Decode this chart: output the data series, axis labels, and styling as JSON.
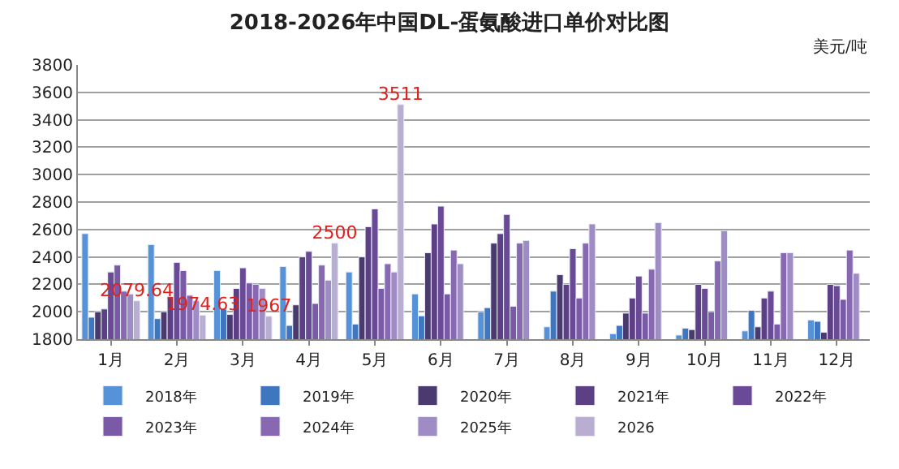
{
  "chart_data": {
    "type": "bar",
    "title": "2018-2026年中国DL-蛋氨酸进口单价对比图",
    "ylabel": "美元/吨",
    "categories": [
      "1月",
      "2月",
      "3月",
      "4月",
      "5月",
      "6月",
      "7月",
      "8月",
      "9月",
      "10月",
      "11月",
      "12月"
    ],
    "ylim": [
      1800,
      3800
    ],
    "yticks": [
      1800,
      2000,
      2200,
      2400,
      2600,
      2800,
      3000,
      3200,
      3400,
      3600,
      3800
    ],
    "grid": "y",
    "legend": "bottom",
    "series": [
      {
        "name": "2018年",
        "color": "#5592d8",
        "values": [
          2570,
          2490,
          2300,
          2330,
          2290,
          2130,
          2000,
          1890,
          1840,
          1830,
          1860,
          1940
        ]
      },
      {
        "name": "2019年",
        "color": "#3f76c0",
        "values": [
          1960,
          1950,
          2020,
          1900,
          1910,
          1970,
          2030,
          2150,
          1900,
          1880,
          2010,
          1930
        ]
      },
      {
        "name": "2020年",
        "color": "#4a3a6e",
        "values": [
          2000,
          2000,
          1980,
          2050,
          2400,
          2430,
          2500,
          2270,
          1990,
          1870,
          1890,
          1850
        ]
      },
      {
        "name": "2021年",
        "color": "#5c3f85",
        "values": [
          2020,
          2110,
          2170,
          2400,
          2620,
          2640,
          2570,
          2200,
          2100,
          2200,
          2100,
          2200
        ]
      },
      {
        "name": "2022年",
        "color": "#6a4a96",
        "values": [
          2290,
          2360,
          2320,
          2440,
          2750,
          2770,
          2710,
          2460,
          2260,
          2170,
          2150,
          2190
        ]
      },
      {
        "name": "2023年",
        "color": "#7a5aa6",
        "values": [
          2340,
          2300,
          2210,
          2060,
          2170,
          2130,
          2040,
          2100,
          1990,
          2000,
          1910,
          2090
        ]
      },
      {
        "name": "2024年",
        "color": "#8868b0",
        "values": [
          2150,
          2120,
          2200,
          2340,
          2350,
          2450,
          2500,
          2500,
          2310,
          2370,
          2430,
          2450
        ]
      },
      {
        "name": "2025年",
        "color": "#a08cc4",
        "values": [
          2130,
          2080,
          2170,
          2230,
          2290,
          2350,
          2520,
          2640,
          2650,
          2590,
          2430,
          2280
        ]
      },
      {
        "name": "2026",
        "color": "#b9aed2",
        "values": [
          2079.64,
          1974.63,
          1967,
          2500,
          3511,
          null,
          null,
          null,
          null,
          null,
          null,
          null
        ],
        "value_labels": [
          "2079.64",
          "1974.63",
          "1967",
          "2500",
          "3511",
          null,
          null,
          null,
          null,
          null,
          null,
          null
        ]
      }
    ]
  }
}
